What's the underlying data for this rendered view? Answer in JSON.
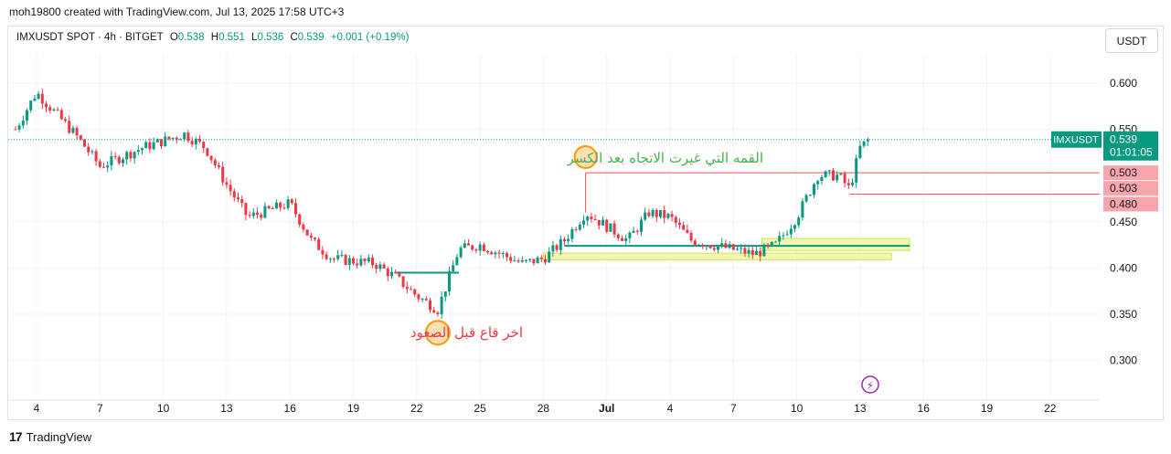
{
  "header": {
    "attribution": "moh19800 created with TradingView.com, Jul 13, 2025 17:58 UTC+3"
  },
  "legend": {
    "symbol": "IMXUSDT SPOT · 4h · BITGET",
    "open_label": "O",
    "open": "0.538",
    "high_label": "H",
    "high": "0.551",
    "low_label": "L",
    "low": "0.536",
    "close_label": "C",
    "close": "0.539",
    "change": "+0.001 (+0.19%)"
  },
  "toolbar": {
    "currency": "USDT"
  },
  "footer": {
    "brand": "TradingView"
  },
  "colors": {
    "up": "#089981",
    "down": "#f23645",
    "bottom_annotation": "#f23645",
    "top_annotation": "#4caf50",
    "circle": "#ff9800",
    "resistance": "#f7525f",
    "zone_fill": "#f3f7b0",
    "support_line": "#089981"
  },
  "chart_data": {
    "type": "candlestick",
    "symbol": "IMXUSDT",
    "timeframe": "4h",
    "ylim": [
      0.25,
      0.64
    ],
    "y_ticks": [
      "0.600",
      "0.550",
      "0.450",
      "0.400",
      "0.350",
      "0.300"
    ],
    "x_ticks": [
      "4",
      "7",
      "10",
      "13",
      "16",
      "19",
      "22",
      "25",
      "28",
      "Jul",
      "4",
      "7",
      "10",
      "13",
      "16",
      "19",
      "22"
    ],
    "key_points": [
      {
        "day": "Jun 3",
        "price": 0.55
      },
      {
        "day": "Jun 4",
        "price": 0.59
      },
      {
        "day": "Jun 6",
        "price": 0.54
      },
      {
        "day": "Jun 7",
        "price": 0.51
      },
      {
        "day": "Jun 9",
        "price": 0.53
      },
      {
        "day": "Jun 11",
        "price": 0.545
      },
      {
        "day": "Jun 12",
        "price": 0.53
      },
      {
        "day": "Jun 13",
        "price": 0.49
      },
      {
        "day": "Jun 14",
        "price": 0.455
      },
      {
        "day": "Jun 16",
        "price": 0.47
      },
      {
        "day": "Jun 17",
        "price": 0.43
      },
      {
        "day": "Jun 18",
        "price": 0.41
      },
      {
        "day": "Jun 20",
        "price": 0.405
      },
      {
        "day": "Jun 21",
        "price": 0.39
      },
      {
        "day": "Jun 22",
        "price": 0.37
      },
      {
        "day": "Jun 23",
        "price": 0.355
      },
      {
        "day": "Jun 24",
        "price": 0.42
      },
      {
        "day": "Jun 25",
        "price": 0.425
      },
      {
        "day": "Jun 27",
        "price": 0.405
      },
      {
        "day": "Jun 28",
        "price": 0.41
      },
      {
        "day": "Jun 29",
        "price": 0.43
      },
      {
        "day": "Jun 30",
        "price": 0.46
      },
      {
        "day": "Jul 1",
        "price": 0.445
      },
      {
        "day": "Jul 2",
        "price": 0.43
      },
      {
        "day": "Jul 3",
        "price": 0.46
      },
      {
        "day": "Jul 4",
        "price": 0.455
      },
      {
        "day": "Jul 5",
        "price": 0.43
      },
      {
        "day": "Jul 7",
        "price": 0.42
      },
      {
        "day": "Jul 8",
        "price": 0.415
      },
      {
        "day": "Jul 9",
        "price": 0.425
      },
      {
        "day": "Jul 10",
        "price": 0.455
      },
      {
        "day": "Jul 11",
        "price": 0.5
      },
      {
        "day": "Jul 12",
        "price": 0.5
      },
      {
        "day": "Jul 12.5",
        "price": 0.485
      },
      {
        "day": "Jul 13",
        "price": 0.53
      },
      {
        "day": "Jul 13.4",
        "price": 0.539
      }
    ],
    "last_price": {
      "symbol": "IMXUSDT",
      "value": "0.539",
      "countdown": "01:01:05"
    },
    "levels": [
      {
        "label": "0.503",
        "value": 0.503
      },
      {
        "label": "0.503",
        "value": 0.503
      },
      {
        "label": "0.480",
        "value": 0.48
      }
    ],
    "annotations": {
      "top_text": "القمه التي غيرت الاتجاه بعد الكسر",
      "bottom_text": "اخر قاع قبل الصعود"
    }
  }
}
